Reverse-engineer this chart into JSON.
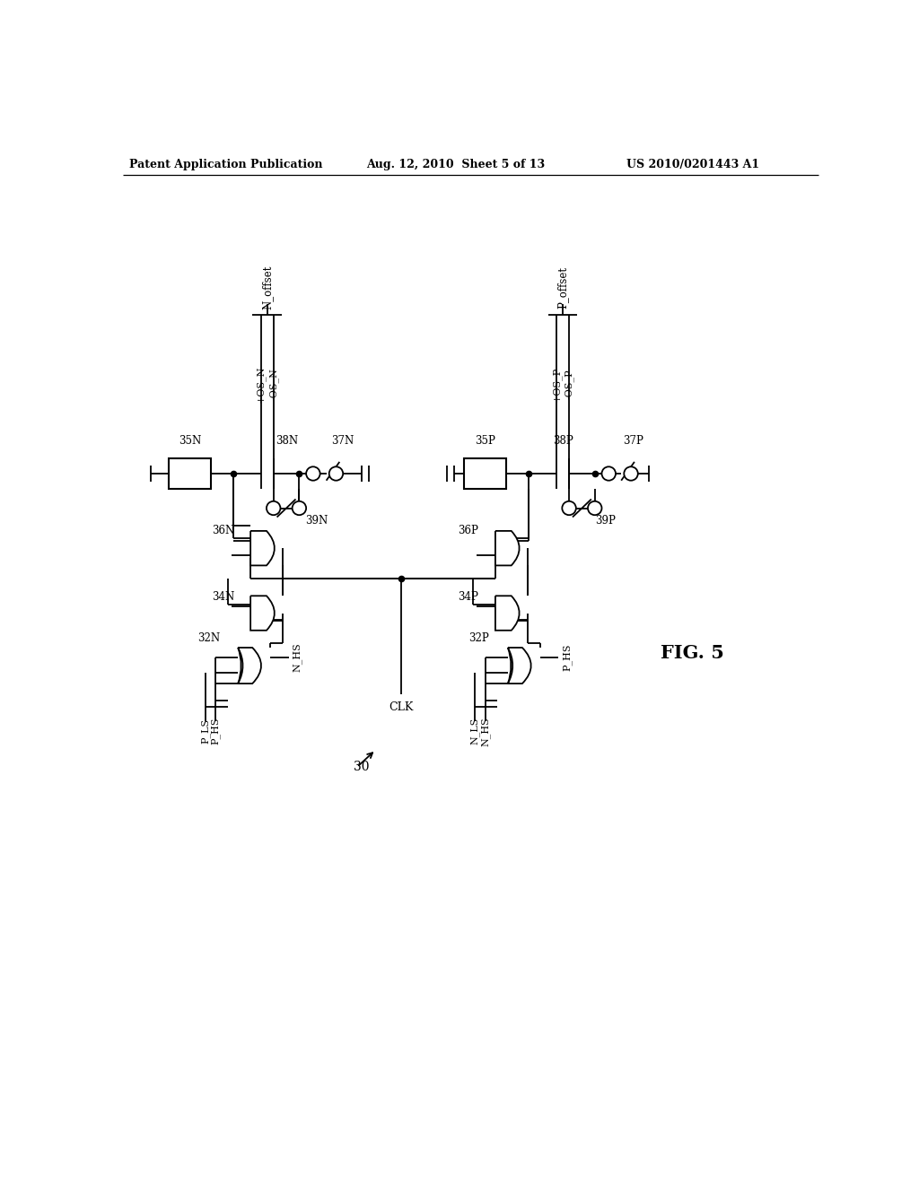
{
  "bg_color": "#ffffff",
  "header_left": "Patent Application Publication",
  "header_center": "Aug. 12, 2010  Sheet 5 of 13",
  "header_right": "US 2010/0201443 A1",
  "fig_label": "FIG. 5",
  "circuit_label": "30"
}
